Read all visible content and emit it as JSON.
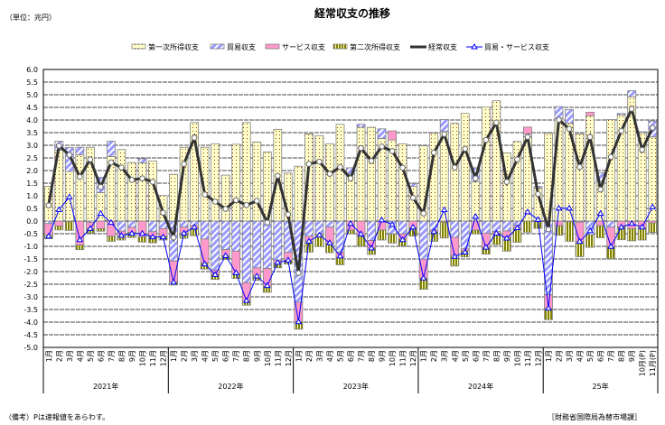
{
  "chart_data": {
    "type": "bar",
    "title": "経常収支の推移",
    "unit_label": "（単位：兆円）",
    "ylim": [
      -5.0,
      6.0
    ],
    "ytick_step": 0.5,
    "grid": true,
    "legend_position": "top",
    "month_labels": [
      "1月",
      "2月",
      "3月",
      "4月",
      "5月",
      "6月",
      "7月",
      "8月",
      "9月",
      "10月",
      "11月",
      "12月",
      "1月",
      "2月",
      "3月",
      "4月",
      "5月",
      "6月",
      "7月",
      "8月",
      "9月",
      "10月",
      "11月",
      "12月",
      "1月",
      "2月",
      "3月",
      "4月",
      "5月",
      "6月",
      "7月",
      "8月",
      "9月",
      "10月",
      "11月",
      "12月",
      "1月",
      "2月",
      "3月",
      "4月",
      "5月",
      "6月",
      "7月",
      "8月",
      "9月",
      "10月",
      "11月",
      "12月",
      "1月",
      "2月",
      "3月",
      "4月",
      "5月",
      "6月",
      "7月",
      "8月",
      "9月",
      "10月(P)",
      "11月(P)"
    ],
    "year_labels": [
      "2021年",
      "2022年",
      "2023年",
      "2024年",
      "25年"
    ],
    "series": [
      {
        "name": "第一次所得収支",
        "kind": "bar",
        "color": "#FFFFCC",
        "values": [
          1.37,
          2.8,
          1.96,
          2.62,
          2.92,
          1.13,
          2.56,
          2.83,
          2.32,
          2.3,
          2.38,
          1.01,
          1.85,
          2.92,
          3.9,
          2.92,
          3.06,
          1.82,
          3.04,
          3.9,
          3.13,
          2.74,
          3.63,
          1.9,
          2.17,
          3.45,
          3.38,
          3.06,
          3.83,
          1.85,
          3.71,
          3.71,
          3.27,
          3.21,
          3.06,
          1.37,
          2.98,
          3.48,
          3.54,
          3.87,
          4.26,
          1.55,
          4.51,
          4.76,
          2.7,
          3.15,
          3.33,
          1.31,
          3.48,
          4.05,
          3.87,
          3.45,
          4.17,
          1.55,
          4.02,
          4.2,
          4.92,
          3.49,
          3.33
        ]
      },
      {
        "name": "貿易収支",
        "kind": "bar",
        "color": "#9999FF",
        "values": [
          -0.1,
          0.36,
          0.95,
          0.3,
          -0.05,
          0.6,
          0.6,
          -0.4,
          -0.25,
          0.17,
          -0.42,
          -0.3,
          -1.58,
          -0.24,
          -0.18,
          -0.71,
          -1.94,
          -1.13,
          -1.19,
          -2.44,
          -1.85,
          -1.88,
          -1.55,
          -1.23,
          -3.21,
          -0.6,
          -0.51,
          -0.24,
          -1.23,
          0.26,
          0.12,
          -0.77,
          0.38,
          -0.51,
          -0.51,
          0.12,
          -1.51,
          -0.36,
          0.48,
          -0.65,
          -1.1,
          0.56,
          -0.48,
          -0.42,
          -0.39,
          -0.18,
          0.12,
          0.06,
          -2.92,
          0.48,
          0.54,
          -0.04,
          -0.54,
          0.36,
          -0.24,
          0.06,
          0.24,
          0.05,
          0.63
        ]
      },
      {
        "name": "サービス収支",
        "kind": "bar",
        "color": "#FF99CC",
        "values": [
          -0.45,
          -0.2,
          -0.02,
          -0.95,
          -0.25,
          -0.3,
          -0.6,
          -0.15,
          -0.2,
          -0.63,
          -0.2,
          -0.3,
          -0.83,
          -0.24,
          -0.1,
          -0.95,
          -0.17,
          -0.24,
          -0.9,
          -0.71,
          -0.3,
          -0.7,
          -0.12,
          -0.32,
          -0.77,
          -0.2,
          -0.05,
          -0.63,
          -0.2,
          -0.36,
          -0.6,
          -0.3,
          -0.36,
          0.36,
          -0.2,
          -0.27,
          -0.75,
          -0.06,
          -0.04,
          -0.71,
          -0.08,
          -0.36,
          -0.56,
          -0.06,
          -0.26,
          -0.09,
          0.27,
          -0.02,
          -0.54,
          -0.18,
          -0.03,
          -0.77,
          0.14,
          -0.18,
          -0.77,
          -0.24,
          -0.3,
          -0.27,
          -0.07
        ]
      },
      {
        "name": "第二次所得収支",
        "kind": "bar",
        "color": "#808000",
        "values": [
          -0.15,
          -0.15,
          -0.35,
          -0.18,
          -0.18,
          -0.1,
          -0.2,
          -0.2,
          -0.2,
          -0.2,
          -0.24,
          -0.15,
          -0.12,
          -0.2,
          -0.3,
          -0.24,
          -0.2,
          -0.15,
          -0.18,
          -0.18,
          -0.2,
          -0.24,
          -0.18,
          -0.15,
          -0.3,
          -0.43,
          -0.45,
          -0.38,
          -0.3,
          -0.15,
          -0.39,
          -0.25,
          -0.39,
          -0.36,
          -0.27,
          -0.32,
          -0.44,
          -0.38,
          -0.63,
          -0.42,
          -0.24,
          -0.15,
          -0.27,
          -0.45,
          -0.54,
          -0.57,
          -0.44,
          -0.27,
          -0.44,
          -0.38,
          -0.77,
          -0.6,
          -0.5,
          -0.48,
          -0.48,
          -0.5,
          -0.48,
          -0.48,
          -0.38
        ]
      },
      {
        "name": "経常収支",
        "kind": "line",
        "color": "#333333",
        "values": [
          0.62,
          2.98,
          2.62,
          1.75,
          2.44,
          1.35,
          2.32,
          2.12,
          1.63,
          1.69,
          1.55,
          0.33,
          -0.65,
          2.26,
          3.3,
          1.05,
          0.77,
          0.48,
          0.83,
          0.63,
          0.8,
          -0.06,
          1.79,
          0.26,
          -2.06,
          2.26,
          2.35,
          1.87,
          2.14,
          1.69,
          2.89,
          2.38,
          2.95,
          2.77,
          2.11,
          0.92,
          0.3,
          2.71,
          3.44,
          2.12,
          2.86,
          1.69,
          3.21,
          3.9,
          1.55,
          2.44,
          3.33,
          1.07,
          -0.33,
          4.01,
          3.65,
          2.14,
          3.33,
          1.25,
          2.54,
          3.57,
          4.44,
          2.82,
          3.69
        ]
      },
      {
        "name": "貿易・サービス収支",
        "kind": "line",
        "color": "#0000FF",
        "values": [
          -0.6,
          0.45,
          0.95,
          -0.74,
          -0.3,
          0.3,
          -0.06,
          -0.57,
          -0.49,
          -0.49,
          -0.63,
          -0.63,
          -2.42,
          -0.48,
          -0.24,
          -1.7,
          -2.12,
          -1.37,
          -2.05,
          -3.15,
          -2.18,
          -2.56,
          -1.64,
          -1.55,
          -3.99,
          -0.8,
          -0.56,
          -0.86,
          -1.39,
          -0.1,
          -0.51,
          -1.07,
          0.04,
          -0.14,
          -0.74,
          -0.24,
          -2.26,
          -0.42,
          0.44,
          -1.4,
          -1.23,
          0.18,
          -1.04,
          -0.48,
          -0.68,
          -0.27,
          0.36,
          0.06,
          -3.45,
          0.51,
          0.51,
          -0.81,
          -0.39,
          0.3,
          -1.01,
          -0.24,
          -0.1,
          -0.24,
          0.56
        ]
      }
    ]
  },
  "footer": {
    "note": "（備考）Pは速報値をあらわす。",
    "source": "［財務省国際局為替市場課］"
  }
}
